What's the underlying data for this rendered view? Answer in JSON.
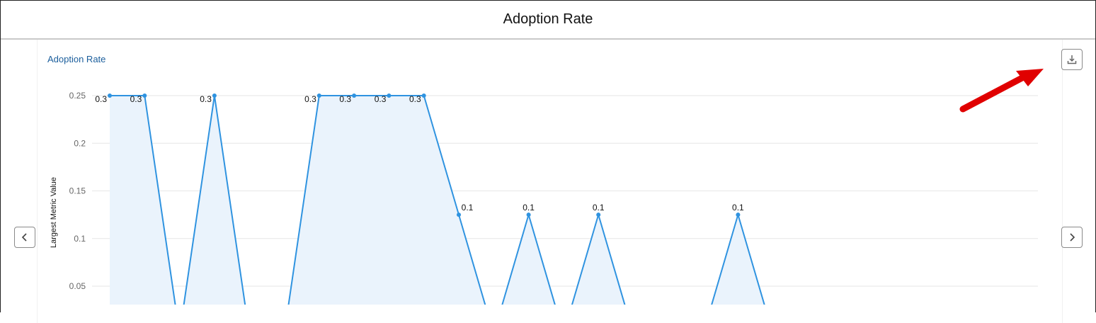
{
  "header": {
    "title": "Adoption Rate"
  },
  "controls": {
    "download_icon": "download-icon",
    "prev_icon": "chevron-left-icon",
    "next_icon": "chevron-right-icon"
  },
  "annotation": {
    "arrow_color": "#e00000"
  },
  "chart_data": {
    "type": "area",
    "title": "Adoption Rate",
    "xlabel": "",
    "ylabel": "Largest Metric Value",
    "ylim": [
      0,
      0.25
    ],
    "yticks": [
      "0.05",
      "0.1",
      "0.15",
      "0.2",
      "0.25"
    ],
    "grid": true,
    "line_color": "#2f93e0",
    "fill_color": "#eaf3fc",
    "series": [
      {
        "values": [
          0.25,
          0.25,
          0,
          0.25,
          0,
          0,
          0.25,
          0.25,
          0.25,
          0.25,
          0.125,
          0,
          0.125,
          0,
          0.125,
          0,
          0,
          0,
          0.125,
          0,
          0,
          0,
          0,
          0,
          0,
          0,
          0
        ],
        "labels": [
          "0.3",
          "0.3",
          "",
          "0.3",
          "",
          "",
          "0.3",
          "0.3",
          "0.3",
          "0.3",
          "0.1",
          "",
          "0.1",
          "",
          "0.1",
          "",
          "",
          "",
          "0.1",
          "",
          "",
          "",
          "",
          "",
          "",
          "",
          ""
        ]
      }
    ]
  }
}
